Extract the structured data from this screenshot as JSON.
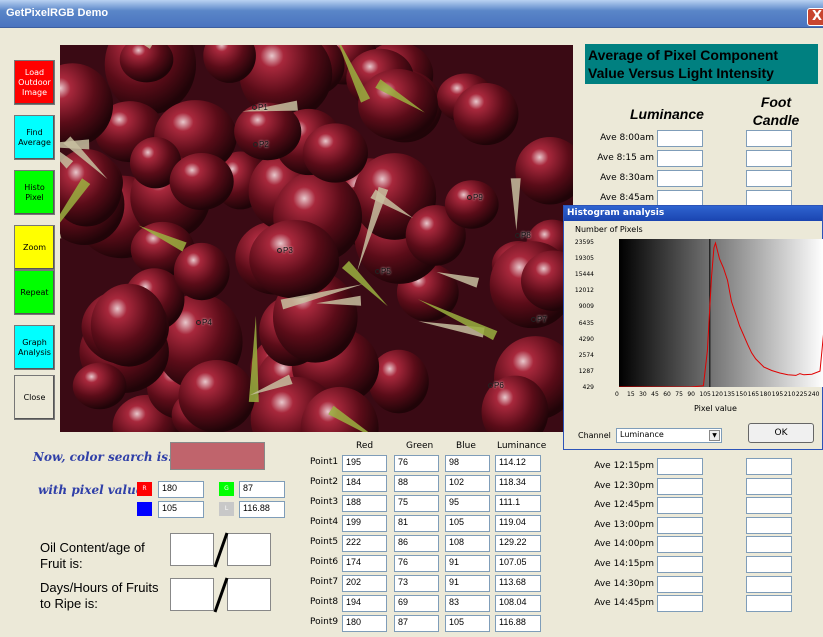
{
  "window": {
    "title": "GetPixelRGB Demo",
    "close_glyph": "X"
  },
  "left_buttons": [
    {
      "label": "Load Outdoor Image",
      "color": "#ff0000",
      "text_color": "#ffffff"
    },
    {
      "label": "Find Average",
      "color": "#00ffff",
      "text_color": "#000000"
    },
    {
      "label": "Histo Pixel",
      "color": "#00ff00",
      "text_color": "#000000"
    },
    {
      "label": "Zoom",
      "color": "#ffff00",
      "text_color": "#000000"
    },
    {
      "label": "Repeat",
      "color": "#00ff00",
      "text_color": "#000000"
    },
    {
      "label": "Graph Analysis",
      "color": "#00ffff",
      "text_color": "#000000"
    },
    {
      "label": "Close",
      "color": "#ece9d8",
      "text_color": "#000000"
    }
  ],
  "image_points": [
    "P1",
    "P2",
    "P3",
    "P4",
    "P5",
    "P6",
    "P7",
    "P8",
    "P9"
  ],
  "header": "Average of Pixel Component Value Versus Light Intensity",
  "col_luminance": "Luminance",
  "col_foot": "Foot Candle",
  "times_top": [
    "Ave 8:00am",
    "Ave 8:15 am",
    "Ave 8:30am",
    "Ave 8:45am"
  ],
  "times_bottom": [
    "Ave 12:15pm",
    "Ave 12:30pm",
    "Ave 12:45pm",
    "Ave 13:00pm",
    "Ave 14:00pm",
    "Ave 14:15pm",
    "Ave 14:30pm",
    "Ave 14:45pm"
  ],
  "color_search": {
    "label": "Now, color search is:",
    "swatch": "#c0646c"
  },
  "pixel_value": {
    "label": "with pixel value;",
    "R": "180",
    "G": "87",
    "B": "105",
    "L": "116.88",
    "R_tag": "R",
    "G_tag": "G",
    "B_tag": "B",
    "L_tag": "L"
  },
  "oil_label": "Oil Content/age of Fruit is:",
  "days_label": "Days/Hours of Fruits to Ripe is:",
  "points_table": {
    "headers": [
      "Red",
      "Green",
      "Blue",
      "Luminance"
    ],
    "rows": [
      {
        "name": "Point1",
        "r": "195",
        "g": "76",
        "b": "98",
        "l": "114.12"
      },
      {
        "name": "Point2",
        "r": "184",
        "g": "88",
        "b": "102",
        "l": "118.34"
      },
      {
        "name": "Point3",
        "r": "188",
        "g": "75",
        "b": "95",
        "l": "111.1"
      },
      {
        "name": "Point4",
        "r": "199",
        "g": "81",
        "b": "105",
        "l": "119.04"
      },
      {
        "name": "Point5",
        "r": "222",
        "g": "86",
        "b": "108",
        "l": "129.22"
      },
      {
        "name": "Point6",
        "r": "174",
        "g": "76",
        "b": "91",
        "l": "107.05"
      },
      {
        "name": "Point7",
        "r": "202",
        "g": "73",
        "b": "91",
        "l": "113.68"
      },
      {
        "name": "Point8",
        "r": "194",
        "g": "69",
        "b": "83",
        "l": "108.04"
      },
      {
        "name": "Point9",
        "r": "180",
        "g": "87",
        "b": "105",
        "l": "116.88"
      }
    ]
  },
  "histogram": {
    "title": "Histogram analysis",
    "ylabel": "Number of Pixels",
    "xlabel": "Pixel value",
    "yticks": [
      "23595",
      "19305",
      "15444",
      "12012",
      "9009",
      "6435",
      "4290",
      "2574",
      "1287",
      "429"
    ],
    "xticks": [
      "0",
      "15",
      "30",
      "45",
      "60",
      "75",
      "90",
      "105",
      "120",
      "135",
      "150",
      "165",
      "180",
      "195",
      "210",
      "225",
      "240"
    ],
    "channel_label": "Channel",
    "channel_value": "Luminance",
    "ok_label": "OK"
  },
  "chart_data": {
    "type": "line",
    "title": "",
    "xlabel": "Pixel value",
    "ylabel": "Number of Pixels",
    "xlim": [
      0,
      255
    ],
    "ylim": [
      429,
      23595
    ],
    "marker_x": 113,
    "x": [
      0,
      30,
      60,
      90,
      105,
      110,
      115,
      118,
      120,
      125,
      130,
      135,
      140,
      145,
      150,
      155,
      160,
      165,
      170,
      180,
      190,
      200,
      210,
      220,
      225,
      230,
      240,
      250,
      255
    ],
    "y": [
      0,
      0,
      0,
      0,
      200,
      6000,
      18000,
      22800,
      23595,
      21000,
      19500,
      17500,
      14000,
      12000,
      10000,
      8500,
      7000,
      5600,
      4600,
      3300,
      2700,
      2300,
      2000,
      1900,
      2200,
      2000,
      2100,
      2600,
      9500
    ]
  }
}
